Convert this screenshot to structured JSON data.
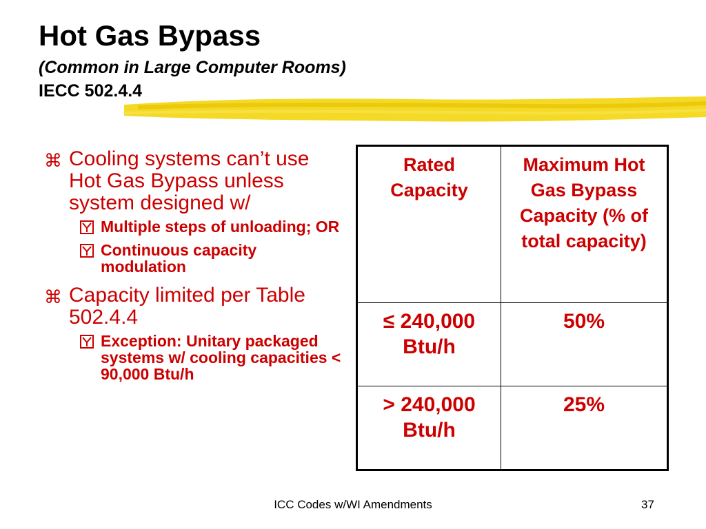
{
  "slide": {
    "title": "Hot Gas Bypass",
    "subtitle": "(Common in Large Computer Rooms)",
    "code_ref": "IECC 502.4.4"
  },
  "content": {
    "bullets": [
      {
        "text": "Cooling systems can’t use Hot Gas Bypass unless system designed w/",
        "sub": [
          "Multiple steps of unloading; OR",
          "Continuous capacity modulation"
        ]
      },
      {
        "text": "Capacity limited per Table 502.4.4",
        "sub": [
          "Exception:  Unitary packaged systems w/ cooling capacities < 90,000 Btu/h"
        ]
      }
    ]
  },
  "table": {
    "headers": [
      "Rated Capacity",
      "Maximum Hot Gas Bypass Capacity (% of total capacity)"
    ],
    "rows": [
      [
        "≤ 240,000 Btu/h",
        "50%"
      ],
      [
        "> 240,000 Btu/h",
        "25%"
      ]
    ]
  },
  "footer": {
    "text": "ICC Codes w/WI Amendments",
    "page_number": "37"
  },
  "colors": {
    "accent_text": "#cc0000",
    "highlight": "#f2d400"
  },
  "icons": {
    "level1_marker": "z-bullet-icon",
    "level2_marker": "checkbox-y-icon"
  }
}
